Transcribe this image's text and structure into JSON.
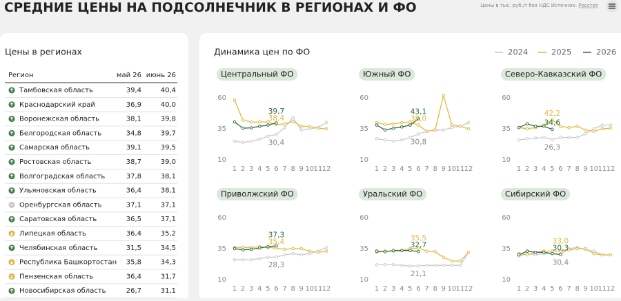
{
  "header": {
    "title": "СРЕДНИЕ ЦЕНЫ НА ПОДСОЛНЕЧНИК В РЕГИОНАХ И ФО",
    "note": "Цены в тыс. руб./т без НДС Источник:",
    "source": "Росстат"
  },
  "table": {
    "title": "Цены в регионах",
    "columns": [
      "Регион",
      "май 26",
      "июнь 26"
    ],
    "rows": [
      {
        "region": "Тамбовская область",
        "may": "39,4",
        "june": "40,4",
        "trend": "up"
      },
      {
        "region": "Краснодарский край",
        "may": "36,9",
        "june": "40,0",
        "trend": "up"
      },
      {
        "region": "Воронежская область",
        "may": "38,1",
        "june": "39,8",
        "trend": "up"
      },
      {
        "region": "Белгородская область",
        "may": "34,8",
        "june": "39,7",
        "trend": "up"
      },
      {
        "region": "Самарская область",
        "may": "39,1",
        "june": "39,5",
        "trend": "up"
      },
      {
        "region": "Ростовская область",
        "may": "38,7",
        "june": "39,0",
        "trend": "up"
      },
      {
        "region": "Волгоградская область",
        "may": "37,8",
        "june": "38,1",
        "trend": "up"
      },
      {
        "region": "Ульяновская область",
        "may": "36,4",
        "june": "38,1",
        "trend": "up"
      },
      {
        "region": "Оренбургская область",
        "may": "37,1",
        "june": "37,1",
        "trend": "flat"
      },
      {
        "region": "Саратовская область",
        "may": "36,5",
        "june": "37,1",
        "trend": "up"
      },
      {
        "region": "Липецкая область",
        "may": "36,4",
        "june": "35,2",
        "trend": "down"
      },
      {
        "region": "Челябинская область",
        "may": "31,5",
        "june": "34,5",
        "trend": "up"
      },
      {
        "region": "Республика Башкортостан",
        "may": "35,8",
        "june": "34,3",
        "trend": "down"
      },
      {
        "region": "Пензенская область",
        "may": "36,4",
        "june": "31,7",
        "trend": "down"
      },
      {
        "region": "Новосибирская область",
        "may": "26,7",
        "june": "31,1",
        "trend": "up"
      }
    ]
  },
  "charts_title": "Динамика цен по ФО",
  "chart_data": [
    {
      "type": "line",
      "title": "Центральный ФО",
      "x": [
        1,
        2,
        3,
        4,
        5,
        6,
        7,
        8,
        9,
        10,
        11,
        12
      ],
      "xlim": [
        1,
        12
      ],
      "ylim": [
        10,
        60
      ],
      "yticks": [
        10,
        35,
        60
      ],
      "series": [
        {
          "name": "2024",
          "color": "#c9c9c9",
          "values": [
            25,
            24,
            25,
            26.5,
            29,
            30.4,
            36,
            44,
            34,
            35,
            36,
            40
          ],
          "value_labels": [
            null,
            null,
            null,
            null,
            null,
            "30,4",
            null,
            null,
            null,
            null,
            null,
            null
          ]
        },
        {
          "name": "2025",
          "color": "#e6b73c",
          "values": [
            58,
            42,
            40.5,
            40.5,
            40.5,
            38.4,
            39,
            41,
            37,
            37,
            35.5,
            35
          ],
          "value_labels": [
            null,
            null,
            null,
            null,
            null,
            "38,4",
            null,
            null,
            null,
            null,
            null,
            null
          ]
        },
        {
          "name": "2026",
          "color": "#2f6b40",
          "values": [
            40.5,
            35.5,
            35.8,
            37,
            38,
            39.7,
            null,
            null,
            null,
            null,
            null,
            null
          ],
          "value_labels": [
            null,
            null,
            null,
            null,
            null,
            "39,7",
            null,
            null,
            null,
            null,
            null,
            null
          ]
        }
      ]
    },
    {
      "type": "line",
      "title": "Южный ФО",
      "x": [
        1,
        2,
        3,
        4,
        5,
        6,
        7,
        8,
        9,
        10,
        11,
        12
      ],
      "xlim": [
        1,
        12
      ],
      "ylim": [
        10,
        60
      ],
      "yticks": [
        10,
        35,
        60
      ],
      "series": [
        {
          "name": "2024",
          "color": "#c9c9c9",
          "values": [
            27,
            26,
            25,
            26,
            28,
            30.8,
            33,
            34,
            34,
            36,
            37,
            40
          ],
          "value_labels": [
            null,
            null,
            null,
            null,
            null,
            "30,8",
            null,
            null,
            null,
            null,
            null,
            null
          ]
        },
        {
          "name": "2025",
          "color": "#e6b73c",
          "values": [
            40,
            38.5,
            39,
            40,
            40.5,
            38,
            33,
            34,
            62,
            38,
            37,
            35
          ],
          "value_labels": [
            null,
            null,
            null,
            null,
            null,
            "38,0",
            null,
            null,
            null,
            null,
            null,
            null
          ]
        },
        {
          "name": "2026",
          "color": "#2f6b40",
          "values": [
            38,
            34,
            35.5,
            36.5,
            38,
            43.1,
            null,
            null,
            null,
            null,
            null,
            null
          ],
          "value_labels": [
            null,
            null,
            null,
            null,
            null,
            "43,1",
            null,
            null,
            null,
            null,
            null,
            null
          ]
        }
      ]
    },
    {
      "type": "line",
      "title": "Северо-Кавказский ФО",
      "x": [
        1,
        2,
        3,
        4,
        5,
        6,
        7,
        8,
        9,
        10,
        11,
        12
      ],
      "xlim": [
        1,
        12
      ],
      "ylim": [
        10,
        60
      ],
      "yticks": [
        10,
        35,
        60
      ],
      "series": [
        {
          "name": "2024",
          "color": "#c9c9c9",
          "values": [
            26,
            27,
            27.5,
            28,
            26.3,
            28,
            28,
            28,
            31,
            35,
            38,
            38
          ],
          "value_labels": [
            null,
            null,
            null,
            null,
            "26,3",
            null,
            null,
            null,
            null,
            null,
            null,
            null
          ]
        },
        {
          "name": "2025",
          "color": "#e6b73c",
          "values": [
            36,
            35,
            36,
            38,
            42.2,
            37,
            36,
            37,
            34,
            33,
            35,
            35.5
          ],
          "value_labels": [
            null,
            null,
            null,
            null,
            "42,2",
            null,
            null,
            null,
            null,
            null,
            null,
            null
          ]
        },
        {
          "name": "2026",
          "color": "#2f6b40",
          "values": [
            36,
            39,
            37,
            37,
            34.6,
            null,
            null,
            null,
            null,
            null,
            null,
            null
          ],
          "value_labels": [
            null,
            null,
            null,
            null,
            "34,6",
            null,
            null,
            null,
            null,
            null,
            null,
            null
          ]
        }
      ]
    },
    {
      "type": "line",
      "title": "Приволжский ФО",
      "x": [
        1,
        2,
        3,
        4,
        5,
        6,
        7,
        8,
        9,
        10,
        11,
        12
      ],
      "xlim": [
        1,
        12
      ],
      "ylim": [
        10,
        60
      ],
      "yticks": [
        10,
        35,
        60
      ],
      "series": [
        {
          "name": "2024",
          "color": "#c9c9c9",
          "values": [
            26,
            26,
            26,
            27,
            28,
            28.3,
            30,
            31,
            30,
            31,
            33,
            36
          ],
          "value_labels": [
            null,
            null,
            null,
            null,
            null,
            "28,3",
            null,
            null,
            null,
            null,
            null,
            null
          ]
        },
        {
          "name": "2025",
          "color": "#e6b73c",
          "values": [
            36,
            36,
            36,
            36.5,
            36,
            35.4,
            34.5,
            35,
            35,
            33,
            32,
            33
          ],
          "value_labels": [
            null,
            null,
            null,
            null,
            null,
            "35,4",
            null,
            null,
            null,
            null,
            null,
            null
          ]
        },
        {
          "name": "2026",
          "color": "#2f6b40",
          "values": [
            35,
            34,
            34.5,
            35.5,
            36.5,
            37.3,
            null,
            null,
            null,
            null,
            null,
            null
          ],
          "value_labels": [
            null,
            null,
            null,
            null,
            null,
            "37,3",
            null,
            null,
            null,
            null,
            null,
            null
          ]
        }
      ]
    },
    {
      "type": "line",
      "title": "Уральский ФО",
      "x": [
        1,
        2,
        3,
        4,
        5,
        6,
        7,
        8,
        9,
        10,
        11,
        12
      ],
      "xlim": [
        1,
        12
      ],
      "ylim": [
        10,
        60
      ],
      "yticks": [
        10,
        35,
        60
      ],
      "series": [
        {
          "name": "2024",
          "color": "#c9c9c9",
          "values": [
            22,
            22,
            22,
            21.5,
            21,
            21.1,
            21.5,
            21.5,
            21.5,
            21.5,
            21.5,
            32
          ],
          "value_labels": [
            null,
            null,
            null,
            null,
            null,
            "21,1",
            null,
            null,
            null,
            null,
            null,
            null
          ]
        },
        {
          "name": "2025",
          "color": "#e6b73c",
          "values": [
            32,
            33,
            33,
            33.5,
            35,
            35.5,
            33,
            32.5,
            28,
            25,
            25,
            32
          ],
          "value_labels": [
            null,
            null,
            null,
            null,
            null,
            "35,5",
            null,
            null,
            null,
            null,
            null,
            null
          ]
        },
        {
          "name": "2026",
          "color": "#2f6b40",
          "values": [
            33,
            32.5,
            33.5,
            33.5,
            33.5,
            32.7,
            null,
            null,
            null,
            null,
            null,
            null
          ],
          "value_labels": [
            null,
            null,
            null,
            null,
            null,
            "32,7",
            null,
            null,
            null,
            null,
            null,
            null
          ]
        }
      ]
    },
    {
      "type": "line",
      "title": "Сибирский ФО",
      "x": [
        1,
        2,
        3,
        4,
        5,
        6,
        7,
        8,
        9,
        10,
        11,
        12
      ],
      "xlim": [
        1,
        12
      ],
      "ylim": [
        10,
        60
      ],
      "yticks": [
        10,
        35,
        60
      ],
      "series": [
        {
          "name": "2024",
          "color": "#c9c9c9",
          "values": [
            29,
            31,
            30,
            31,
            31,
            30.4,
            35,
            36,
            34,
            33,
            30,
            30
          ],
          "value_labels": [
            null,
            null,
            null,
            null,
            null,
            "30,4",
            null,
            null,
            null,
            null,
            null,
            null
          ]
        },
        {
          "name": "2025",
          "color": "#e6b73c",
          "values": [
            31,
            30,
            32,
            33,
            33,
            33,
            34,
            35,
            35,
            31,
            30,
            30
          ],
          "value_labels": [
            null,
            null,
            null,
            null,
            null,
            "33,0",
            null,
            null,
            null,
            null,
            null,
            null
          ]
        },
        {
          "name": "2026",
          "color": "#2f6b40",
          "values": [
            30,
            33,
            32,
            32,
            31,
            30.3,
            null,
            null,
            null,
            null,
            null,
            null
          ],
          "value_labels": [
            null,
            null,
            null,
            null,
            null,
            "30,3",
            null,
            null,
            null,
            null,
            null,
            null
          ]
        }
      ]
    }
  ]
}
